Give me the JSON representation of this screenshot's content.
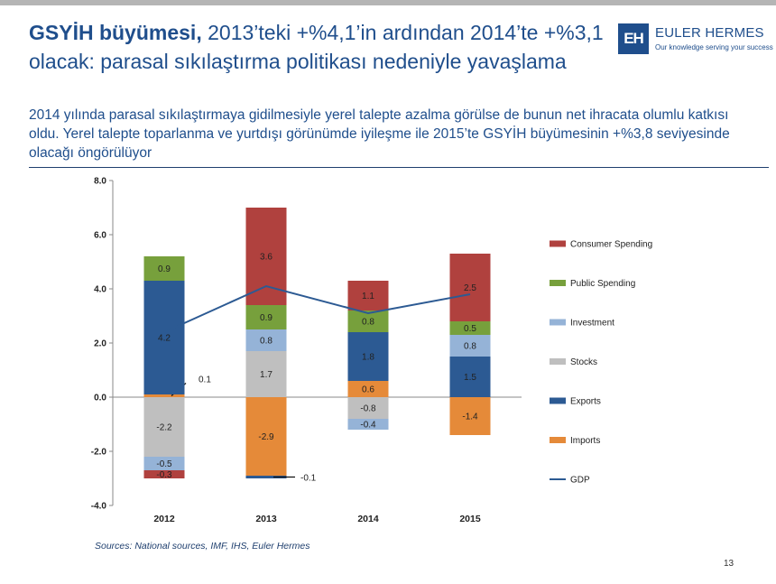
{
  "title": {
    "bold": "GSYİH büyümesi,",
    "rest": " 2013’teki +%4,1’in ardından 2014’te +%3,1 olacak: parasal sıkılaştırma politikası nedeniyle yavaşlama"
  },
  "subtitle": "2014 yılında parasal sıkılaştırmaya gidilmesiyle yerel talepte azalma görülse de bunun net ihracata olumlu katkısı oldu. Yerel talepte toparlanma ve yurtdışı görünümde iyileşme ile 2015’te GSYİH büyümesinin +%3,8 seviyesinde olacağı öngörülüyor",
  "logo": {
    "mark": "EH",
    "name": "EULER HERMES",
    "tagline": "Our knowledge serving your success"
  },
  "source": "Sources: National sources, IMF, IHS, Euler Hermes",
  "page_number": "13",
  "chart_data": {
    "type": "bar",
    "stacked": true,
    "categories": [
      "2012",
      "2013",
      "2014",
      "2015"
    ],
    "ylim": [
      -4.0,
      8.0
    ],
    "yticks": [
      "-4.0",
      "-2.0",
      "0.0",
      "2.0",
      "4.0",
      "6.0",
      "8.0"
    ],
    "grid": false,
    "legend_position": "right",
    "series": [
      {
        "name": "Consumer Spending",
        "color": "#b0413e",
        "values": [
          -0.3,
          3.6,
          1.1,
          2.5
        ],
        "labels": [
          "-0.3",
          "3.6",
          "1.1",
          "2.5"
        ]
      },
      {
        "name": "Public Spending",
        "color": "#77a03c",
        "values": [
          0.9,
          0.9,
          0.8,
          0.5
        ],
        "labels": [
          "0.9",
          "0.9",
          "0.8",
          "0.5"
        ]
      },
      {
        "name": "Investment",
        "color": "#95b3d7",
        "values": [
          -0.5,
          0.8,
          -0.4,
          0.8
        ],
        "labels": [
          "-0.5",
          "0.8",
          "-0.4",
          "0.8"
        ]
      },
      {
        "name": "Stocks",
        "color": "#bfbfbf",
        "values": [
          -2.2,
          1.7,
          -0.8,
          0.0
        ],
        "labels": [
          "-2.2",
          "1.7",
          "-0.8",
          ""
        ]
      },
      {
        "name": "Exports",
        "color": "#2c5a93",
        "values": [
          4.2,
          -0.1,
          1.8,
          1.5
        ],
        "labels": [
          "4.2",
          "-0.1",
          "1.8",
          "1.5"
        ]
      },
      {
        "name": "Imports",
        "color": "#e58a39",
        "values": [
          0.1,
          -2.9,
          0.6,
          -1.4
        ],
        "labels": [
          "0.1",
          "-2.9",
          "0.6",
          "-1.4"
        ]
      },
      {
        "name": "GDP",
        "type": "line",
        "color": "#2c5a93",
        "values": [
          2.4,
          4.1,
          3.1,
          3.8
        ]
      }
    ]
  }
}
